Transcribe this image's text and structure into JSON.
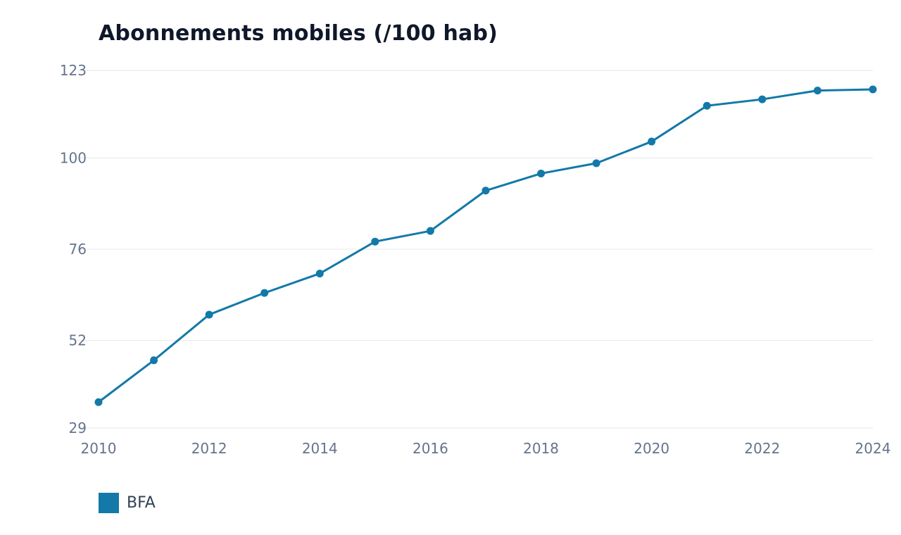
{
  "chart_data": {
    "type": "line",
    "title": "Abonnements mobiles (/100 hab)",
    "xlabel": "",
    "ylabel": "",
    "x": [
      2010,
      2011,
      2012,
      2013,
      2014,
      2015,
      2016,
      2017,
      2018,
      2019,
      2020,
      2021,
      2022,
      2023,
      2024
    ],
    "x_ticks": [
      "2010",
      "2012",
      "2014",
      "2016",
      "2018",
      "2020",
      "2022",
      "2024"
    ],
    "y_ticks": [
      "29",
      "52",
      "76",
      "100",
      "123"
    ],
    "xlim": [
      2010,
      2024
    ],
    "ylim": [
      29,
      123
    ],
    "grid": true,
    "legend_position": "bottom-left",
    "series": [
      {
        "name": "BFA",
        "color": "#1279a8",
        "values": [
          35.8,
          46.8,
          58.8,
          64.5,
          69.6,
          78.0,
          80.8,
          91.4,
          95.9,
          98.6,
          104.3,
          113.7,
          115.4,
          117.7,
          118.0
        ]
      }
    ]
  }
}
